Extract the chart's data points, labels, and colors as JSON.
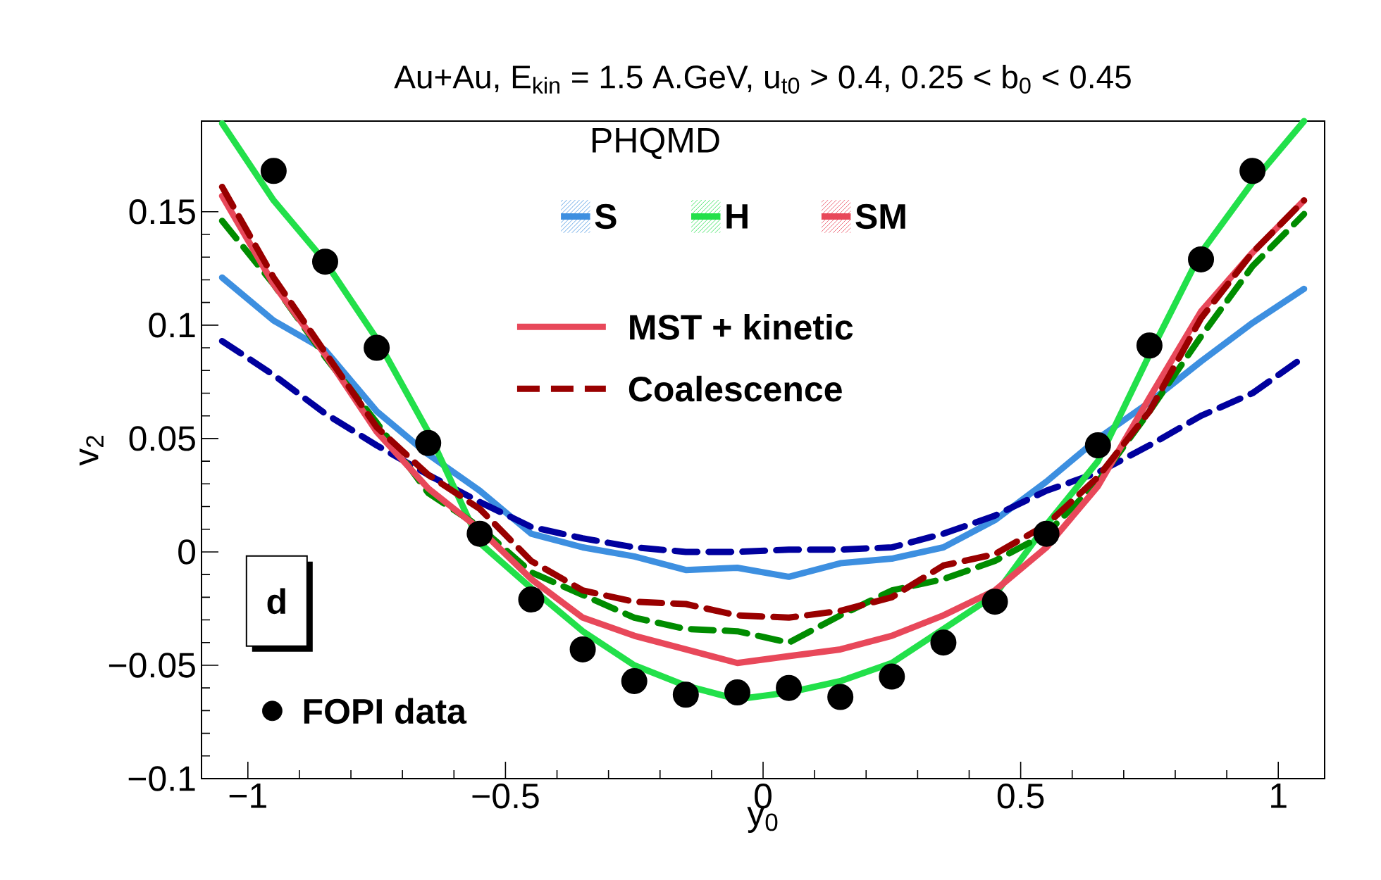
{
  "chart_data": {
    "type": "line",
    "title": "Au+Au, E$_{kin}$ = 1.5 A.GeV, u$_{t0}$ > 0.4, 0.25 < b$_{0}$ < 0.45",
    "xlabel": "y$_{0}$",
    "ylabel": "v$_{2}$",
    "legend_title": "PHQMD",
    "legend": "left",
    "marker": "none",
    "x": [
      -1.05,
      -0.95,
      -0.85,
      -0.75,
      -0.65,
      -0.55,
      -0.45,
      -0.35,
      -0.25,
      -0.15,
      -0.05,
      0.05,
      0.15,
      0.25,
      0.35,
      0.45,
      0.55,
      0.65,
      0.75,
      0.85,
      0.95,
      1.05
    ],
    "xlim": [
      -1.09,
      1.09
    ],
    "ylim": [
      -0.1,
      0.19
    ],
    "xticks": [
      {
        "value": -1,
        "label": "−1"
      },
      {
        "value": -0.5,
        "label": "−0.5"
      },
      0,
      0.5,
      1
    ],
    "yticks": [
      {
        "value": -0.1,
        "label": "−0.1"
      },
      {
        "value": -0.05,
        "label": "−0.05"
      },
      0,
      0.05,
      0.1,
      0.15
    ],
    "annotations": [
      "MST + kinetic",
      "Coalescence",
      "d"
    ],
    "series": [
      {
        "name": "S",
        "color": "#3d8fe0",
        "line_style": "solid",
        "values": [
          0.121,
          0.102,
          0.089,
          0.062,
          0.043,
          0.027,
          0.008,
          0.002,
          -0.002,
          -0.008,
          -0.007,
          -0.011,
          -0.005,
          -0.003,
          0.002,
          0.014,
          0.031,
          0.05,
          0.066,
          0.084,
          0.101,
          0.116
        ]
      },
      {
        "color": "#00009e",
        "line_style": "dashed",
        "values": [
          0.093,
          0.078,
          0.061,
          0.047,
          0.034,
          0.022,
          0.011,
          0.006,
          0.002,
          0.0,
          0.0,
          0.001,
          0.001,
          0.002,
          0.008,
          0.016,
          0.027,
          0.035,
          0.047,
          0.06,
          0.07,
          0.086
        ]
      },
      {
        "name": "H",
        "color": "#22e04a",
        "line_style": "solid",
        "values": [
          0.189,
          0.155,
          0.128,
          0.094,
          0.053,
          0.004,
          -0.016,
          -0.035,
          -0.05,
          -0.059,
          -0.065,
          -0.062,
          -0.057,
          -0.049,
          -0.034,
          -0.019,
          0.012,
          0.04,
          0.087,
          0.132,
          0.163,
          0.19
        ]
      },
      {
        "color": "#008c00",
        "line_style": "dashed",
        "values": [
          0.146,
          0.118,
          0.086,
          0.057,
          0.026,
          0.011,
          -0.009,
          -0.019,
          -0.029,
          -0.034,
          -0.035,
          -0.04,
          -0.028,
          -0.017,
          -0.012,
          -0.004,
          0.008,
          0.031,
          0.062,
          0.095,
          0.126,
          0.149
        ]
      },
      {
        "name": "SM",
        "color": "#e8485a",
        "line_style": "solid",
        "values": [
          0.157,
          0.118,
          0.087,
          0.053,
          0.028,
          0.01,
          -0.012,
          -0.029,
          -0.037,
          -0.043,
          -0.049,
          -0.046,
          -0.043,
          -0.037,
          -0.028,
          -0.017,
          0.002,
          0.029,
          0.068,
          0.106,
          0.132,
          0.155
        ]
      },
      {
        "color": "#990000",
        "line_style": "dashed",
        "values": [
          0.161,
          0.121,
          0.088,
          0.055,
          0.034,
          0.019,
          -0.004,
          -0.017,
          -0.022,
          -0.023,
          -0.028,
          -0.029,
          -0.026,
          -0.02,
          -0.006,
          -0.001,
          0.012,
          0.033,
          0.062,
          0.103,
          0.132,
          0.155
        ]
      },
      {
        "name": "FOPI data",
        "type": "scatter",
        "marker": "circle",
        "color": "#000000",
        "x": [
          -0.95,
          -0.85,
          -0.75,
          -0.65,
          -0.55,
          -0.45,
          -0.35,
          -0.25,
          -0.15,
          -0.05,
          0.05,
          0.15,
          0.25,
          0.35,
          0.45,
          0.55,
          0.65,
          0.75,
          0.85,
          0.95
        ],
        "values": [
          0.168,
          0.128,
          0.09,
          0.048,
          0.008,
          -0.021,
          -0.043,
          -0.057,
          -0.063,
          -0.062,
          -0.06,
          -0.064,
          -0.055,
          -0.04,
          -0.022,
          0.008,
          0.047,
          0.091,
          0.129,
          0.168
        ]
      }
    ]
  }
}
